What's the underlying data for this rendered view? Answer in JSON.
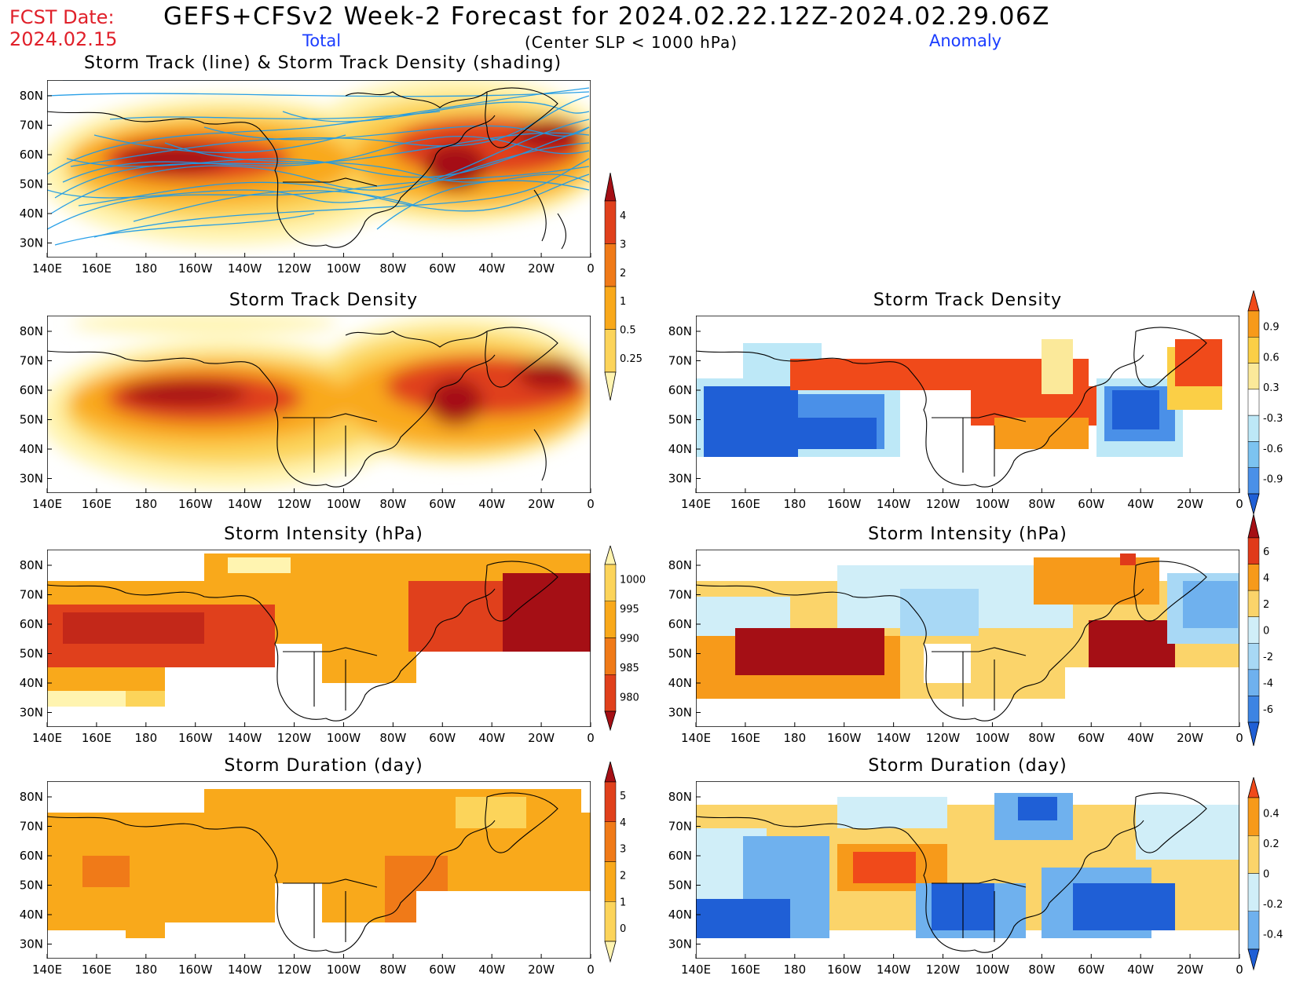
{
  "header": {
    "fcst_label": "FCST Date:",
    "fcst_date": "2024.02.15",
    "title": "GEFS+CFSv2 Week-2 Forecast for 2024.02.22.12Z-2024.02.29.06Z",
    "subtitle": "(Center SLP < 1000 hPa)",
    "total_label": "Total",
    "anomaly_label": "Anomaly"
  },
  "axes": {
    "lon_labels": [
      "140E",
      "160E",
      "180",
      "160W",
      "140W",
      "120W",
      "100W",
      "80W",
      "60W",
      "40W",
      "20W",
      "0"
    ],
    "lat_labels": [
      "80N",
      "70N",
      "60N",
      "50N",
      "40N",
      "30N"
    ]
  },
  "panels": {
    "track": {
      "title": "Storm Track (line) & Storm Track Density (shading)"
    },
    "density": {
      "title": "Storm Track Density"
    },
    "density_anom": {
      "title": "Storm Track Density"
    },
    "intensity": {
      "title": "Storm Intensity (hPa)"
    },
    "intensity_anom": {
      "title": "Storm Intensity (hPa)"
    },
    "duration": {
      "title": "Storm Duration (day)"
    },
    "duration_anom": {
      "title": "Storm Duration (day)"
    }
  },
  "colorbars": {
    "density": {
      "labels": [
        "4",
        "3",
        "2",
        "1",
        "0.5",
        "0.25"
      ],
      "colors": [
        "#a50f15",
        "#e0401c",
        "#f07a18",
        "#f9a91b",
        "#fcd45a",
        "#fff4b0"
      ]
    },
    "intensity": {
      "labels": [
        "1000",
        "995",
        "990",
        "985",
        "980"
      ],
      "colors": [
        "#fff4b0",
        "#fcd45a",
        "#f9a91b",
        "#f07a18",
        "#e0401c",
        "#a50f15"
      ]
    },
    "duration": {
      "labels": [
        "5",
        "4",
        "3",
        "2",
        "1",
        "0"
      ],
      "colors": [
        "#a50f15",
        "#e0401c",
        "#f07a18",
        "#f9a91b",
        "#fcd45a",
        "#fff4b0"
      ]
    },
    "density_anom": {
      "labels": [
        "0.9",
        "0.6",
        "0.3",
        "-0.3",
        "-0.6",
        "-0.9"
      ],
      "colors": [
        "#f04a1a",
        "#f79a1a",
        "#fbcf46",
        "#fbe99a",
        "#ffffff",
        "#bde8f7",
        "#7cc3f0",
        "#4a90e8",
        "#1f5fd6"
      ]
    },
    "intensity_anom": {
      "labels": [
        "6",
        "4",
        "2",
        "0",
        "-2",
        "-4",
        "-6"
      ],
      "colors": [
        "#a50f15",
        "#e03a1a",
        "#f79a1a",
        "#fbd46a",
        "#d0eef8",
        "#a8d8f5",
        "#6fb1ee",
        "#3d84e3",
        "#1f5fd6"
      ]
    },
    "duration_anom": {
      "labels": [
        "0.4",
        "0.2",
        "0",
        "-0.2",
        "-0.4"
      ],
      "colors": [
        "#f04a1a",
        "#f79a1a",
        "#fbd46a",
        "#d0eef8",
        "#6fb1ee",
        "#1f5fd6"
      ]
    }
  },
  "colors": {
    "dark_red": "#a50f15",
    "red": "#e0401c",
    "orange": "#f9a91b",
    "yellow": "#fcd45a",
    "pale": "#fff4b0",
    "light_blue": "#bde8f7",
    "mid_blue": "#6fb1ee",
    "blue": "#1f5fd6",
    "track_line": "#1e9be6"
  }
}
